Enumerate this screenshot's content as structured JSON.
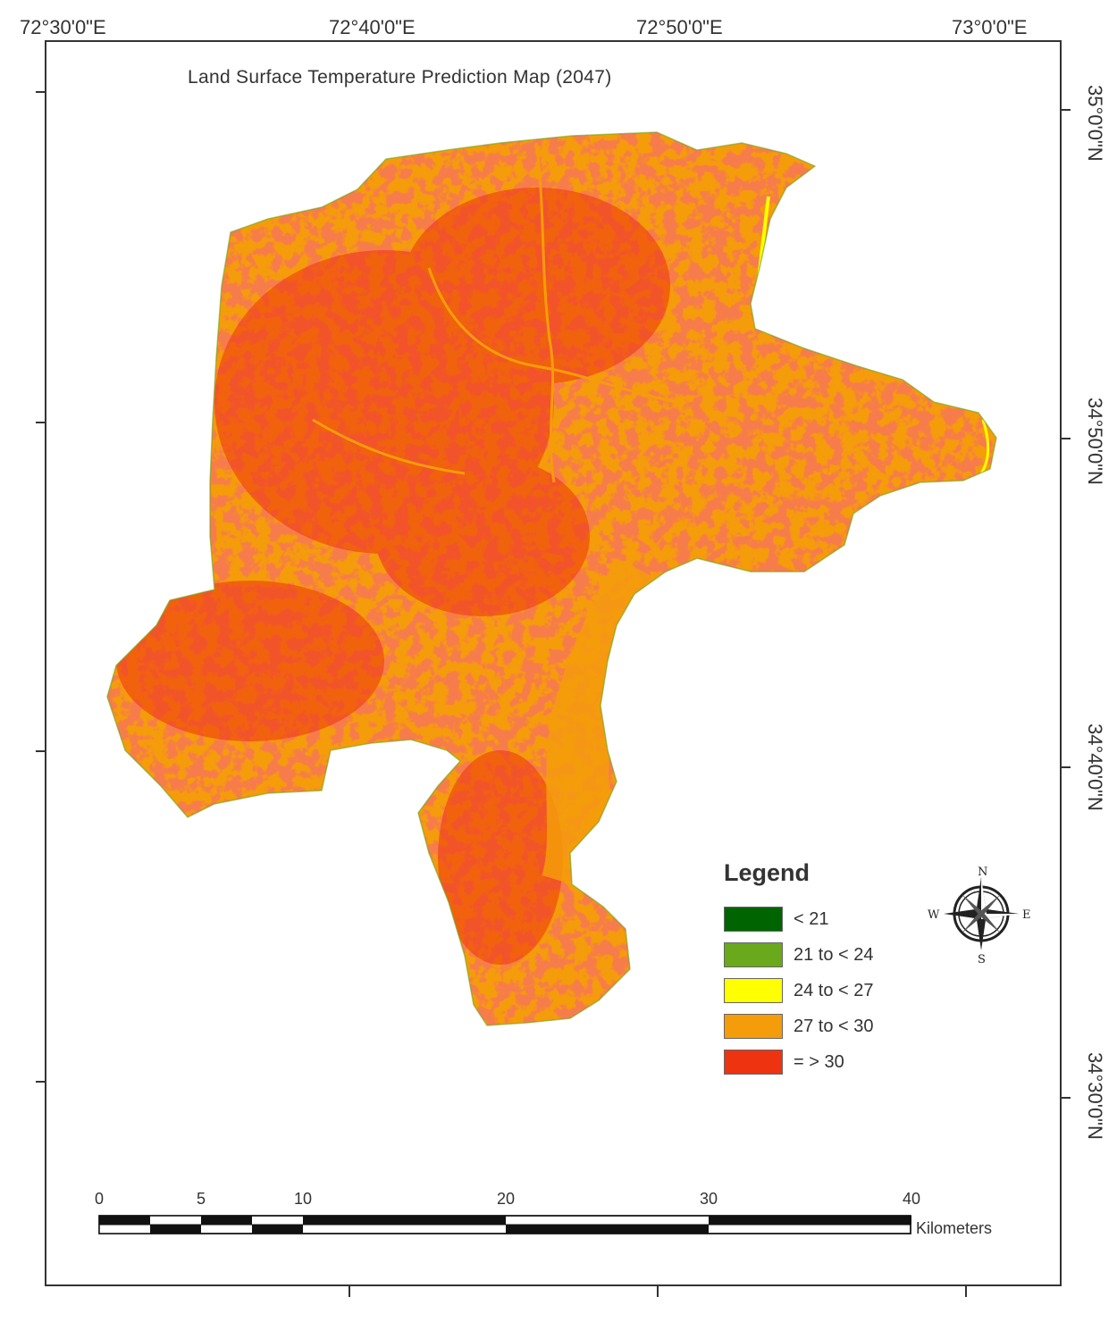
{
  "map": {
    "title": "Land Surface Temperature Prediction Map (2047)",
    "longitude_labels": [
      "72°30'0\"E",
      "72°40'0\"E",
      "72°50'0\"E",
      "73°0'0\"E"
    ],
    "latitude_labels": [
      "35°0'0\"N",
      "34°50'0\"N",
      "34°40'0\"N",
      "34°30'0\"N"
    ]
  },
  "legend": {
    "title": "Legend",
    "items": [
      {
        "label": "< 21",
        "color": "#006400"
      },
      {
        "label": "21 to < 24",
        "color": "#6aa81c"
      },
      {
        "label": "24 to < 27",
        "color": "#ffff00"
      },
      {
        "label": "27 to < 30",
        "color": "#f59c0a"
      },
      {
        "label": "= > 30",
        "color": "#ee3311"
      }
    ]
  },
  "compass": {
    "n": "N",
    "e": "E",
    "s": "S",
    "w": "W"
  },
  "scale_bar": {
    "labels": [
      "0",
      "5",
      "10",
      "20",
      "30",
      "40"
    ],
    "unit": "Kilometers"
  }
}
